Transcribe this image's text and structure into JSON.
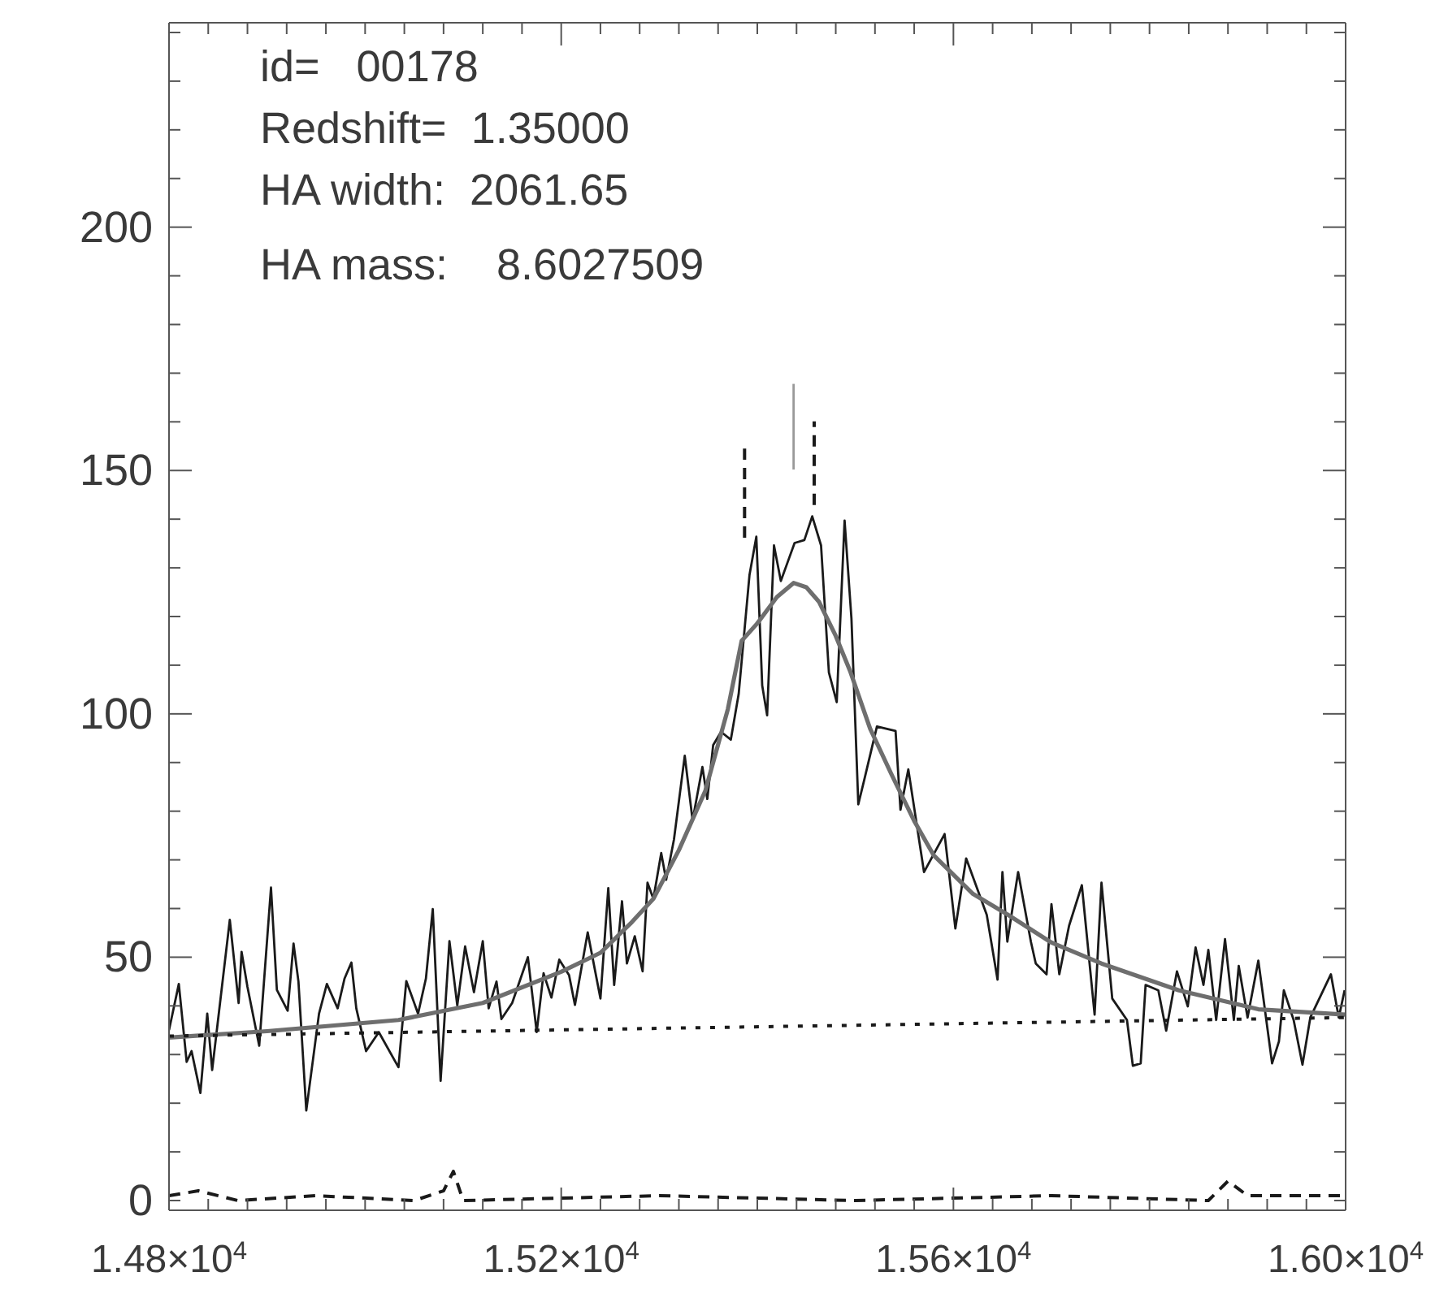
{
  "chart_data": {
    "type": "line",
    "marker": "none",
    "xlim": [
      14800,
      16000
    ],
    "ylim": [
      -2,
      242
    ],
    "xticks": [
      {
        "value": 14800,
        "label": "1.48×10$^{4}$"
      },
      {
        "value": 14840,
        "label": null
      },
      {
        "value": 14880,
        "label": null
      },
      {
        "value": 14920,
        "label": null
      },
      {
        "value": 14960,
        "label": null
      },
      {
        "value": 15000,
        "label": null
      },
      {
        "value": 15040,
        "label": null
      },
      {
        "value": 15080,
        "label": null
      },
      {
        "value": 15120,
        "label": null
      },
      {
        "value": 15160,
        "label": null
      },
      {
        "value": 15200,
        "label": "1.52×10$^{4}$"
      },
      {
        "value": 15240,
        "label": null
      },
      {
        "value": 15280,
        "label": null
      },
      {
        "value": 15320,
        "label": null
      },
      {
        "value": 15360,
        "label": null
      },
      {
        "value": 15400,
        "label": null
      },
      {
        "value": 15440,
        "label": null
      },
      {
        "value": 15480,
        "label": null
      },
      {
        "value": 15520,
        "label": null
      },
      {
        "value": 15560,
        "label": null
      },
      {
        "value": 15600,
        "label": "1.56×10$^{4}$"
      },
      {
        "value": 15640,
        "label": null
      },
      {
        "value": 15680,
        "label": null
      },
      {
        "value": 15720,
        "label": null
      },
      {
        "value": 15760,
        "label": null
      },
      {
        "value": 15800,
        "label": null
      },
      {
        "value": 15840,
        "label": null
      },
      {
        "value": 15880,
        "label": null
      },
      {
        "value": 15920,
        "label": null
      },
      {
        "value": 15960,
        "label": null
      },
      {
        "value": 16000,
        "label": "1.60×10$^{4}$"
      }
    ],
    "yticks": [
      0,
      {
        "value": 10,
        "label": null
      },
      {
        "value": 20,
        "label": null
      },
      {
        "value": 30,
        "label": null
      },
      {
        "value": 40,
        "label": null
      },
      50,
      {
        "value": 60,
        "label": null
      },
      {
        "value": 70,
        "label": null
      },
      {
        "value": 80,
        "label": null
      },
      {
        "value": 90,
        "label": null
      },
      100,
      {
        "value": 110,
        "label": null
      },
      {
        "value": 120,
        "label": null
      },
      {
        "value": 130,
        "label": null
      },
      {
        "value": 140,
        "label": null
      },
      150,
      {
        "value": 160,
        "label": null
      },
      {
        "value": 170,
        "label": null
      },
      {
        "value": 180,
        "label": null
      },
      {
        "value": 190,
        "label": null
      },
      200,
      {
        "value": 210,
        "label": null
      },
      {
        "value": 220,
        "label": null
      },
      {
        "value": 230,
        "label": null
      },
      {
        "value": 240,
        "label": null
      }
    ],
    "annotations": [
      "id=   00178",
      "Redshift=  1.35000",
      "HA width:  2061.65",
      "HA mass:    8.6027509"
    ],
    "series": [
      {
        "color": "#1a1a1a",
        "line_style": "solid",
        "x": [
          14800,
          14810,
          14818,
          14823,
          14832,
          14839,
          14844,
          14862,
          14871,
          14874,
          14880,
          14892,
          14904,
          14910,
          14921,
          14927,
          14932,
          14940,
          14953,
          14961,
          14972,
          14979,
          14986,
          14991,
          15001,
          15014,
          15034,
          15042,
          15054,
          15062,
          15069,
          15077,
          15086,
          15094,
          15102,
          15111,
          15120,
          15126,
          15134,
          15139,
          15150,
          15166,
          15175,
          15182,
          15190,
          15198,
          15208,
          15214,
          15227,
          15240,
          15248,
          15254,
          15262,
          15267,
          15275,
          15283,
          15288,
          15294,
          15302,
          15307,
          15315,
          15326,
          15334,
          15344,
          15349,
          15355,
          15363,
          15373,
          15381,
          15387,
          15392,
          15399,
          15405,
          15410,
          15417,
          15424,
          15431,
          15438,
          15448,
          15456,
          15465,
          15473,
          15481,
          15489,
          15496,
          15503,
          15509,
          15522,
          15541,
          15546,
          15554,
          15570,
          15591,
          15602,
          15613,
          15634,
          15645,
          15650,
          15655,
          15666,
          15679,
          15684,
          15695,
          15700,
          15708,
          15718,
          15731,
          15744,
          15751,
          15762,
          15777,
          15783,
          15791,
          15796,
          15809,
          15817,
          15828,
          15839,
          15847,
          15855,
          15860,
          15868,
          15877,
          15886,
          15891,
          15900,
          15911,
          15925,
          15932,
          15937,
          15947,
          15956,
          15964,
          15985,
          15993,
          15999
        ],
        "values": [
          35,
          44.5,
          28.5,
          30.7,
          22.1,
          38.4,
          26.8,
          57.7,
          40.6,
          51.1,
          43.9,
          31.8,
          64.3,
          43.3,
          39,
          52.8,
          45,
          18.5,
          38.4,
          44.5,
          39.5,
          45.6,
          48.9,
          39.5,
          30.7,
          34.6,
          27.4,
          45.1,
          38.4,
          45.6,
          59.9,
          24.6,
          53.3,
          40.1,
          52.2,
          42.8,
          53.3,
          39.5,
          45,
          37.3,
          40.6,
          50,
          34.6,
          46.7,
          41.7,
          49.5,
          46.3,
          40.2,
          55.1,
          41.5,
          64.2,
          44.3,
          61.5,
          48.7,
          54.3,
          47.1,
          65.3,
          62,
          71.4,
          65.9,
          74.2,
          91.4,
          78.1,
          89.1,
          82.5,
          93.6,
          96.3,
          94.7,
          104.1,
          117.4,
          128.5,
          136.4,
          105.8,
          99.7,
          134.6,
          127.3,
          131.2,
          135.1,
          135.7,
          140.6,
          134.6,
          108.5,
          102.4,
          139.7,
          119.6,
          81.4,
          86.4,
          97.4,
          96.5,
          80.3,
          88.6,
          67.5,
          75.3,
          55.9,
          70.3,
          58.7,
          45.4,
          67.5,
          53.2,
          67.5,
          53.2,
          48.7,
          46.5,
          60.9,
          46.5,
          56.5,
          64.8,
          38.2,
          65.3,
          41.5,
          37.1,
          27.7,
          28.2,
          44.3,
          43.2,
          34.9,
          47.1,
          39.9,
          52,
          44.3,
          51.5,
          37.1,
          53.7,
          37.1,
          48.2,
          37.6,
          49.3,
          28.2,
          32.7,
          43.2,
          37.1,
          27.9,
          37.6,
          46.5,
          37.6,
          43.2
        ]
      },
      {
        "color": "#6e6e6e",
        "line_style": "solid",
        "x": [
          14800,
          14900,
          15034,
          15120,
          15200,
          15240,
          15272,
          15294,
          15320,
          15347,
          15370,
          15384,
          15400,
          15420,
          15437,
          15450,
          15463,
          15480,
          15495,
          15515,
          15537,
          15560,
          15580,
          15620,
          15655,
          15700,
          15751,
          15830,
          15911,
          16000
        ],
        "values": [
          33.5,
          34.8,
          37.1,
          40.6,
          47,
          50.9,
          57.2,
          62,
          72,
          84.2,
          101,
          115,
          118.6,
          124,
          126.9,
          126,
          123,
          116,
          108.6,
          97,
          87.5,
          78,
          70.9,
          63,
          58.8,
          53,
          48.7,
          43.2,
          39.3,
          38.2
        ]
      },
      {
        "color": "#1a1a1a",
        "line_style": "dotted",
        "x": [
          14800,
          16000
        ],
        "values": [
          33.8,
          37.6
        ]
      },
      {
        "color": "#1a1a1a",
        "line_style": "dashed",
        "x": [
          14800,
          14830,
          14870,
          14950,
          15050,
          15080,
          15090,
          15100,
          15300,
          15500,
          15700,
          15860,
          15880,
          15900,
          16000
        ],
        "values": [
          1,
          2,
          0,
          1,
          0,
          2,
          6,
          0,
          1,
          0,
          1,
          0,
          4,
          1,
          1
        ]
      },
      {
        "color": "#1a1a1a",
        "line_style": "dashed",
        "x": [
          15387,
          15387
        ],
        "values": [
          136.2,
          154.5
        ]
      },
      {
        "color": "#999999",
        "line_style": "solid",
        "x": [
          15437,
          15437
        ],
        "values": [
          150.2,
          167.8
        ]
      },
      {
        "color": "#1a1a1a",
        "line_style": "dashed",
        "x": [
          15458,
          15458
        ],
        "values": [
          142.9,
          160.1
        ]
      }
    ]
  }
}
